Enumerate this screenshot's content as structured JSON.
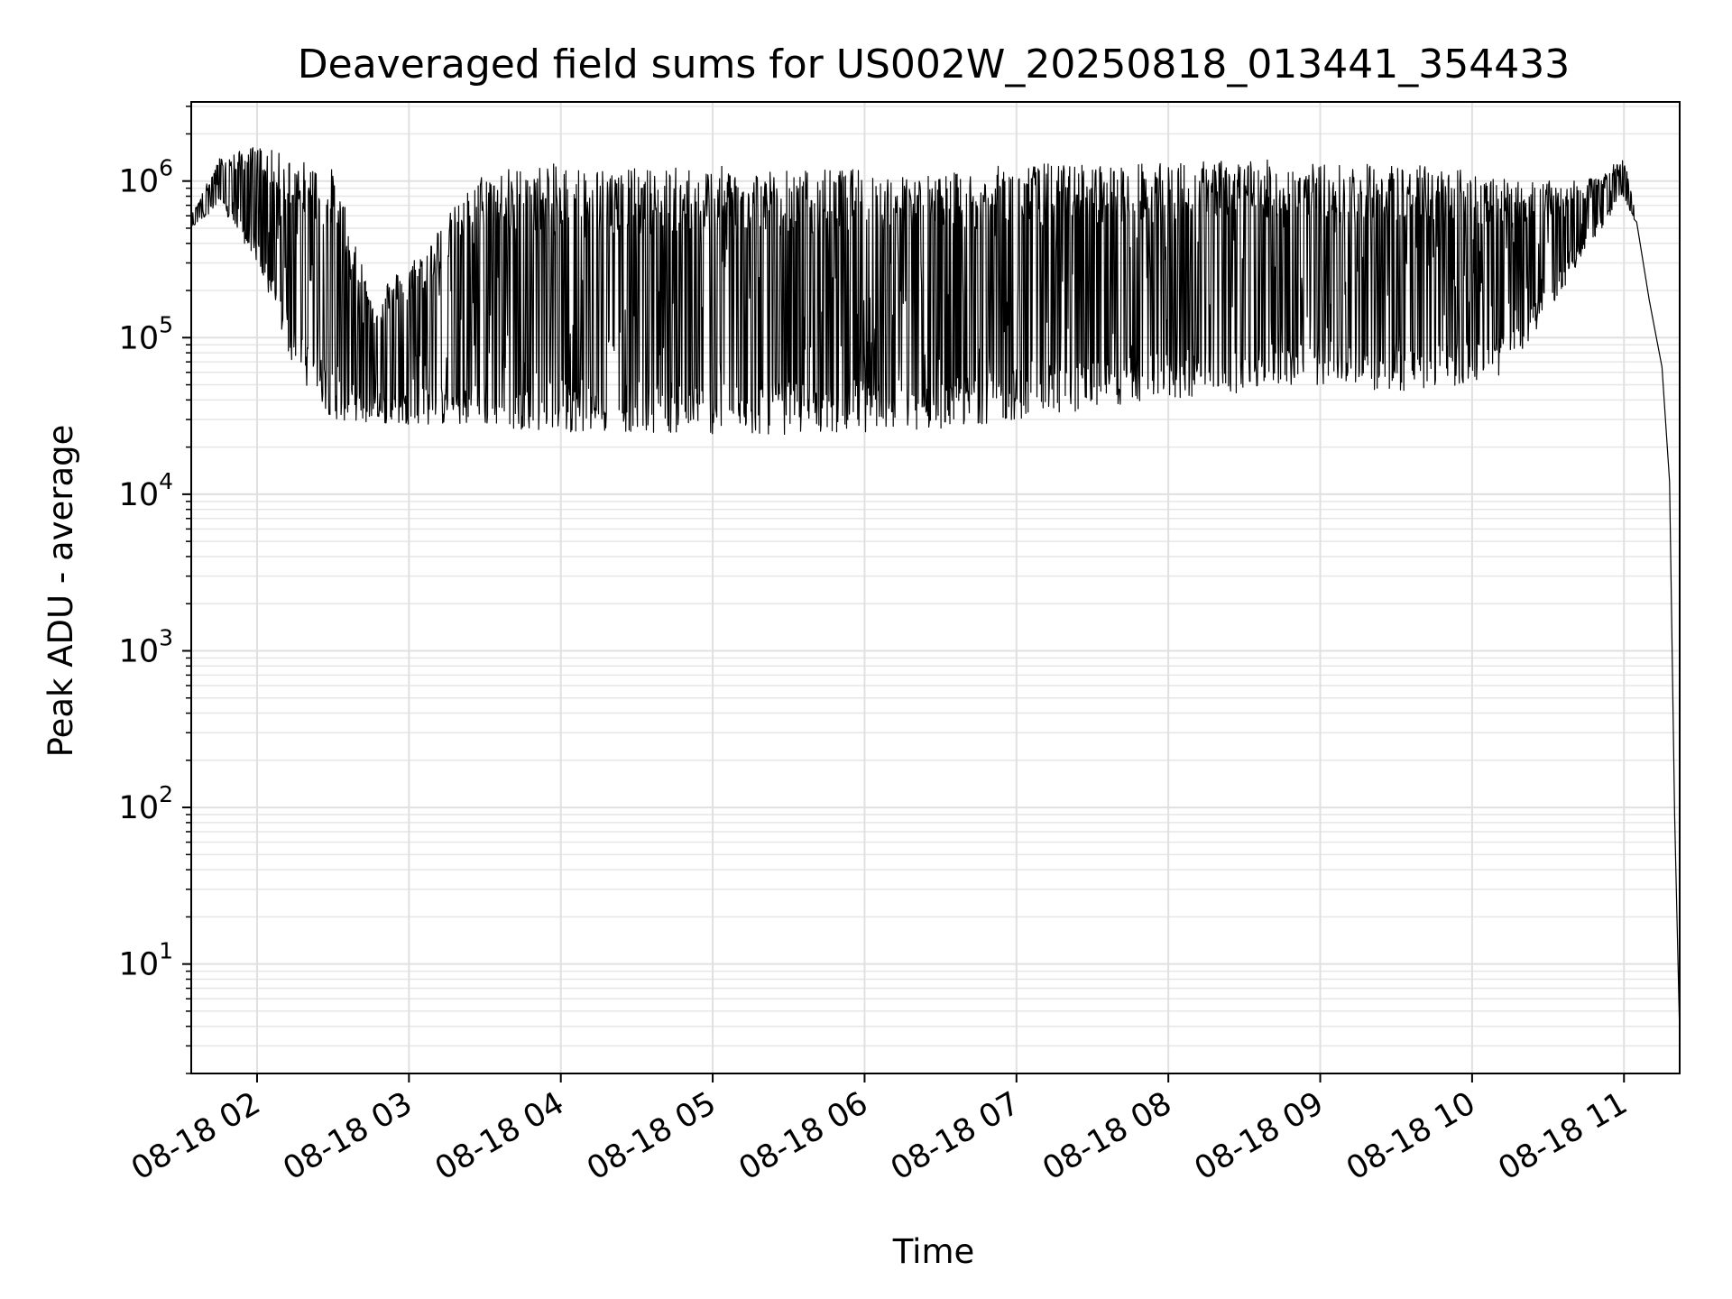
{
  "chart_data": {
    "type": "line",
    "title": "Deaveraged field sums for US002W_20250818_013441_354433",
    "xlabel": "Time",
    "ylabel": "Peak ADU - average",
    "yscale": "log",
    "ylim": [
      2,
      3200000
    ],
    "xlim": [
      "2025-08-18 01:34",
      "2025-08-18 11:22"
    ],
    "grid": true,
    "series_color": "#000000",
    "x_ticks": [
      {
        "value": "2025-08-18 02:00",
        "label": "08-18 02"
      },
      {
        "value": "2025-08-18 03:00",
        "label": "08-18 03"
      },
      {
        "value": "2025-08-18 04:00",
        "label": "08-18 04"
      },
      {
        "value": "2025-08-18 05:00",
        "label": "08-18 05"
      },
      {
        "value": "2025-08-18 06:00",
        "label": "08-18 06"
      },
      {
        "value": "2025-08-18 07:00",
        "label": "08-18 07"
      },
      {
        "value": "2025-08-18 08:00",
        "label": "08-18 08"
      },
      {
        "value": "2025-08-18 09:00",
        "label": "08-18 09"
      },
      {
        "value": "2025-08-18 10:00",
        "label": "08-18 10"
      },
      {
        "value": "2025-08-18 11:00",
        "label": "08-18 11"
      }
    ],
    "y_ticks": [
      {
        "value": 10,
        "base": "10",
        "exp": "1"
      },
      {
        "value": 100,
        "base": "10",
        "exp": "2"
      },
      {
        "value": 1000,
        "base": "10",
        "exp": "3"
      },
      {
        "value": 10000,
        "base": "10",
        "exp": "4"
      },
      {
        "value": 100000,
        "base": "10",
        "exp": "5"
      },
      {
        "value": 1000000,
        "base": "10",
        "exp": "6"
      }
    ],
    "series": [
      {
        "values_approx": [
          {
            "x": "2025-08-18 01:34",
            "upper": 600000,
            "lower": 500000
          },
          {
            "x": "2025-08-18 01:45",
            "upper": 1400000,
            "lower": 700000
          },
          {
            "x": "2025-08-18 02:00",
            "upper": 1700000,
            "lower": 300000
          },
          {
            "x": "2025-08-18 02:15",
            "upper": 1400000,
            "lower": 60000
          },
          {
            "x": "2025-08-18 02:30",
            "upper": 1200000,
            "lower": 30000
          },
          {
            "x": "2025-08-18 02:45",
            "upper": 200000,
            "lower": 28000
          },
          {
            "x": "2025-08-18 03:00",
            "upper": 300000,
            "lower": 28000
          },
          {
            "x": "2025-08-18 03:30",
            "upper": 1200000,
            "lower": 27000
          },
          {
            "x": "2025-08-18 04:00",
            "upper": 1300000,
            "lower": 25000
          },
          {
            "x": "2025-08-18 04:30",
            "upper": 1200000,
            "lower": 25000
          },
          {
            "x": "2025-08-18 05:00",
            "upper": 1250000,
            "lower": 24000
          },
          {
            "x": "2025-08-18 05:30",
            "upper": 1200000,
            "lower": 24000
          },
          {
            "x": "2025-08-18 06:00",
            "upper": 1200000,
            "lower": 25000
          },
          {
            "x": "2025-08-18 06:30",
            "upper": 1100000,
            "lower": 26000
          },
          {
            "x": "2025-08-18 07:00",
            "upper": 1300000,
            "lower": 30000
          },
          {
            "x": "2025-08-18 07:30",
            "upper": 1300000,
            "lower": 35000
          },
          {
            "x": "2025-08-18 08:00",
            "upper": 1300000,
            "lower": 40000
          },
          {
            "x": "2025-08-18 08:30",
            "upper": 1400000,
            "lower": 45000
          },
          {
            "x": "2025-08-18 09:00",
            "upper": 1300000,
            "lower": 50000
          },
          {
            "x": "2025-08-18 09:30",
            "upper": 1300000,
            "lower": 45000
          },
          {
            "x": "2025-08-18 10:00",
            "upper": 1200000,
            "lower": 50000
          },
          {
            "x": "2025-08-18 10:15",
            "upper": 1000000,
            "lower": 60000
          },
          {
            "x": "2025-08-18 10:45",
            "upper": 1000000,
            "lower": 350000
          },
          {
            "x": "2025-08-18 11:00",
            "upper": 1400000,
            "lower": 800000
          },
          {
            "x": "2025-08-18 11:05",
            "upper": 600000,
            "lower": 500000
          },
          {
            "x": "2025-08-18 11:10",
            "upper": 200000,
            "lower": 150000
          },
          {
            "x": "2025-08-18 11:15",
            "upper": 70000,
            "lower": 60000
          },
          {
            "x": "2025-08-18 11:18",
            "upper": 12000,
            "lower": 12000
          },
          {
            "x": "2025-08-18 11:20",
            "upper": 100,
            "lower": 80
          },
          {
            "x": "2025-08-18 11:22",
            "upper": 4,
            "lower": 3
          }
        ]
      }
    ]
  }
}
